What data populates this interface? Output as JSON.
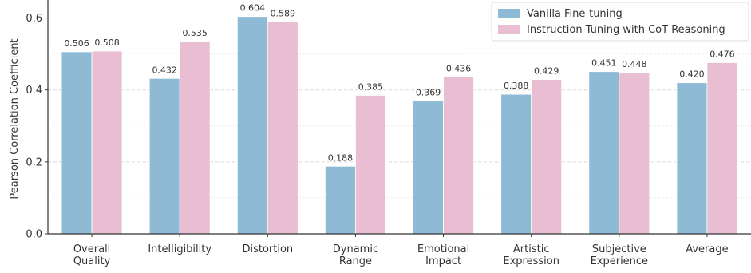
{
  "chart_data": {
    "type": "bar",
    "ylabel": "Pearson Correlation Coefficient",
    "xlabel": "",
    "ylim": [
      0,
      0.65
    ],
    "yticks": [
      "0.0",
      "0.2",
      "0.4",
      "0.6"
    ],
    "grid": true,
    "legend_position": "top-right",
    "categories": [
      [
        "Overall",
        "Quality"
      ],
      [
        "Intelligibility"
      ],
      [
        "Distortion"
      ],
      [
        "Dynamic",
        "Range"
      ],
      [
        "Emotional",
        "Impact"
      ],
      [
        "Artistic",
        "Expression"
      ],
      [
        "Subjective",
        "Experience"
      ],
      [
        "Average"
      ]
    ],
    "series": [
      {
        "name": "Vanilla Fine-tuning",
        "color": "#8fbad6",
        "values": [
          0.506,
          0.432,
          0.604,
          0.188,
          0.369,
          0.388,
          0.451,
          0.42
        ],
        "labels": [
          "0.506",
          "0.432",
          "0.604",
          "0.188",
          "0.369",
          "0.388",
          "0.451",
          "0.420"
        ]
      },
      {
        "name": "Instruction Tuning with CoT Reasoning",
        "color": "#e9bed3",
        "values": [
          0.508,
          0.535,
          0.589,
          0.385,
          0.436,
          0.429,
          0.448,
          0.476
        ],
        "labels": [
          "0.508",
          "0.535",
          "0.589",
          "0.385",
          "0.436",
          "0.429",
          "0.448",
          "0.476"
        ]
      }
    ]
  }
}
